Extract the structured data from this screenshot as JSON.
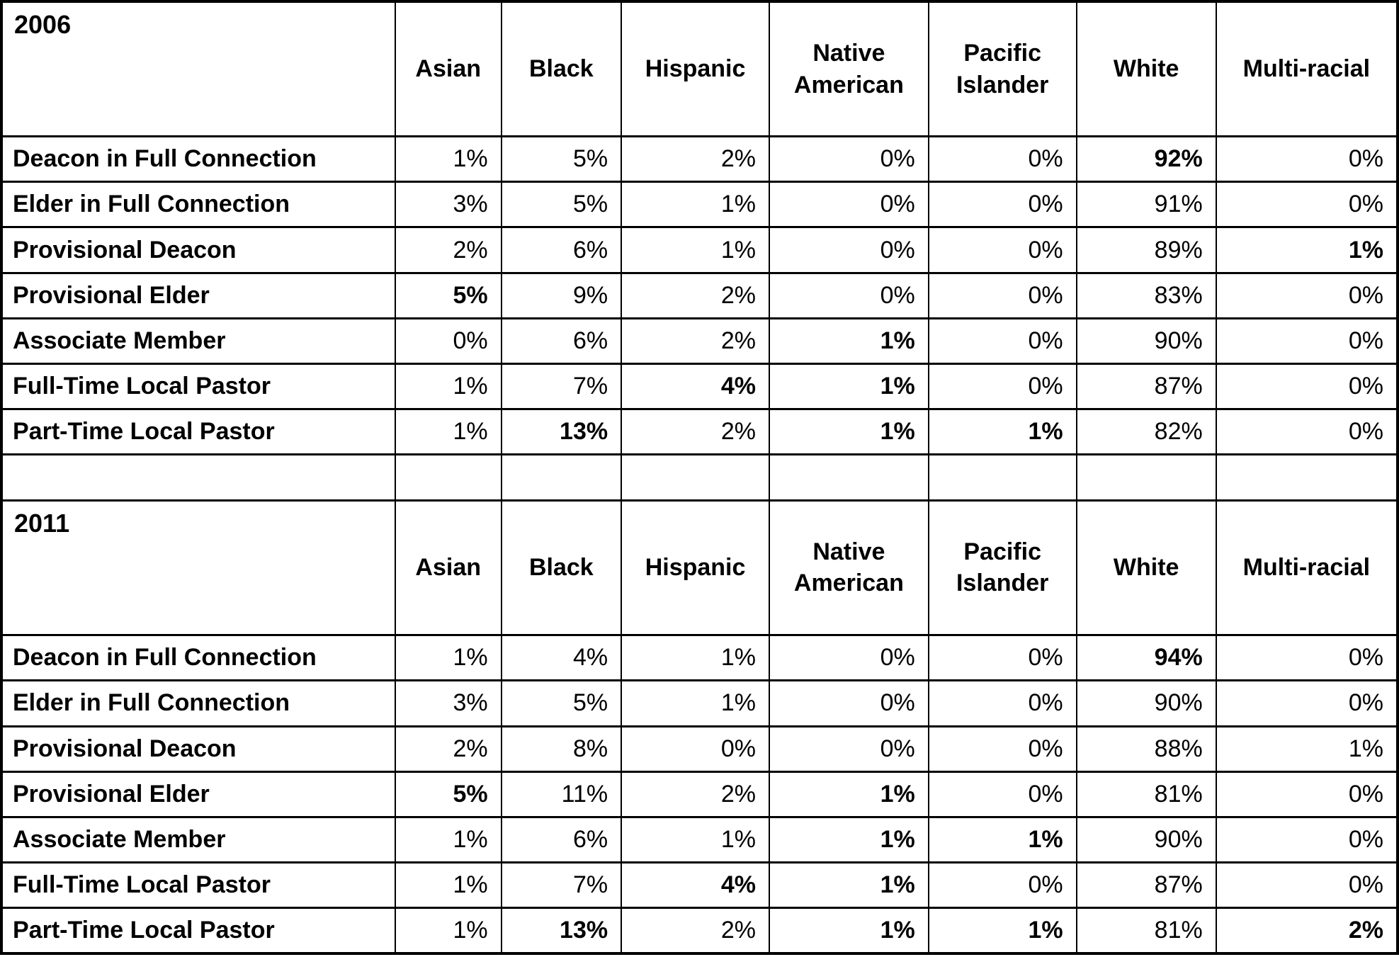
{
  "chart_data": [
    {
      "type": "table",
      "title": "2006",
      "columns": [
        "Asian",
        "Black",
        "Hispanic",
        "Native American",
        "Pacific Islander",
        "White",
        "Multi-racial"
      ],
      "rows": [
        {
          "label": "Deacon in Full Connection",
          "values": [
            "1%",
            "5%",
            "2%",
            "0%",
            "0%",
            "92%",
            "0%"
          ],
          "bold": [
            false,
            false,
            false,
            false,
            false,
            true,
            false
          ]
        },
        {
          "label": "Elder in Full Connection",
          "values": [
            "3%",
            "5%",
            "1%",
            "0%",
            "0%",
            "91%",
            "0%"
          ],
          "bold": [
            false,
            false,
            false,
            false,
            false,
            false,
            false
          ]
        },
        {
          "label": "Provisional Deacon",
          "values": [
            "2%",
            "6%",
            "1%",
            "0%",
            "0%",
            "89%",
            "1%"
          ],
          "bold": [
            false,
            false,
            false,
            false,
            false,
            false,
            true
          ]
        },
        {
          "label": "Provisional Elder",
          "values": [
            "5%",
            "9%",
            "2%",
            "0%",
            "0%",
            "83%",
            "0%"
          ],
          "bold": [
            true,
            false,
            false,
            false,
            false,
            false,
            false
          ]
        },
        {
          "label": "Associate Member",
          "values": [
            "0%",
            "6%",
            "2%",
            "1%",
            "0%",
            "90%",
            "0%"
          ],
          "bold": [
            false,
            false,
            false,
            true,
            false,
            false,
            false
          ]
        },
        {
          "label": "Full-Time Local Pastor",
          "values": [
            "1%",
            "7%",
            "4%",
            "1%",
            "0%",
            "87%",
            "0%"
          ],
          "bold": [
            false,
            false,
            true,
            true,
            false,
            false,
            false
          ]
        },
        {
          "label": "Part-Time Local Pastor",
          "values": [
            "1%",
            "13%",
            "2%",
            "1%",
            "1%",
            "82%",
            "0%"
          ],
          "bold": [
            false,
            true,
            false,
            true,
            true,
            false,
            false
          ]
        }
      ]
    },
    {
      "type": "table",
      "title": "2011",
      "columns": [
        "Asian",
        "Black",
        "Hispanic",
        "Native American",
        "Pacific Islander",
        "White",
        "Multi-racial"
      ],
      "rows": [
        {
          "label": "Deacon in Full Connection",
          "values": [
            "1%",
            "4%",
            "1%",
            "0%",
            "0%",
            "94%",
            "0%"
          ],
          "bold": [
            false,
            false,
            false,
            false,
            false,
            true,
            false
          ]
        },
        {
          "label": "Elder in Full Connection",
          "values": [
            "3%",
            "5%",
            "1%",
            "0%",
            "0%",
            "90%",
            "0%"
          ],
          "bold": [
            false,
            false,
            false,
            false,
            false,
            false,
            false
          ]
        },
        {
          "label": "Provisional Deacon",
          "values": [
            "2%",
            "8%",
            "0%",
            "0%",
            "0%",
            "88%",
            "1%"
          ],
          "bold": [
            false,
            false,
            false,
            false,
            false,
            false,
            false
          ]
        },
        {
          "label": "Provisional Elder",
          "values": [
            "5%",
            "11%",
            "2%",
            "1%",
            "0%",
            "81%",
            "0%"
          ],
          "bold": [
            true,
            false,
            false,
            true,
            false,
            false,
            false
          ]
        },
        {
          "label": "Associate Member",
          "values": [
            "1%",
            "6%",
            "1%",
            "1%",
            "1%",
            "90%",
            "0%"
          ],
          "bold": [
            false,
            false,
            false,
            true,
            true,
            false,
            false
          ]
        },
        {
          "label": "Full-Time Local Pastor",
          "values": [
            "1%",
            "7%",
            "4%",
            "1%",
            "0%",
            "87%",
            "0%"
          ],
          "bold": [
            false,
            false,
            true,
            true,
            false,
            false,
            false
          ]
        },
        {
          "label": "Part-Time Local Pastor",
          "values": [
            "1%",
            "13%",
            "2%",
            "1%",
            "1%",
            "81%",
            "2%"
          ],
          "bold": [
            false,
            true,
            false,
            true,
            true,
            false,
            true
          ]
        }
      ]
    }
  ]
}
